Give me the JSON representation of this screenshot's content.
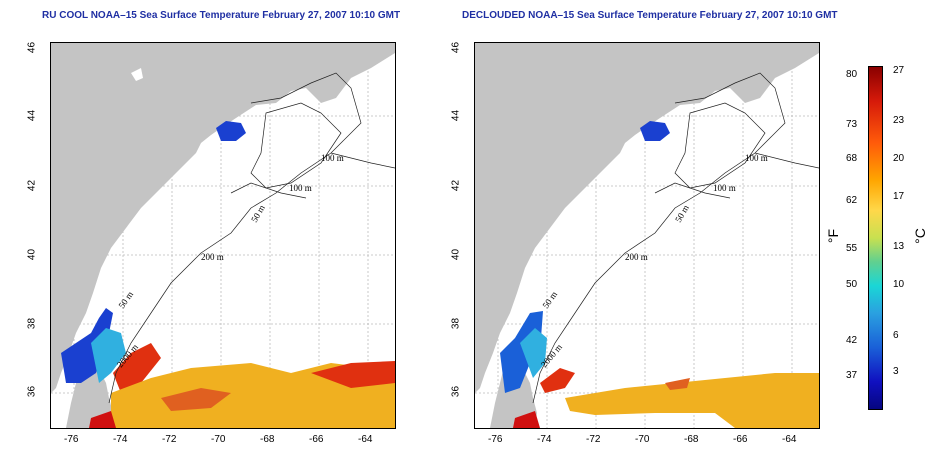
{
  "titles": {
    "left": "RU COOL NOAA–15 Sea Surface Temperature February 27, 2007 10:10 GMT",
    "right": "DECLOUDED NOAA–15 Sea Surface Temperature February 27, 2007 10:10 GMT"
  },
  "axes": {
    "x_ticks": [
      "-76",
      "-74",
      "-72",
      "-70",
      "-68",
      "-66",
      "-64"
    ],
    "y_ticks": [
      "46",
      "44",
      "42",
      "40",
      "38",
      "36"
    ]
  },
  "contours": {
    "c100a": "100 m",
    "c100b": "100 m",
    "c50": "50 m",
    "c200": "200 m",
    "c50b": "50 m",
    "c2000": "2000 m"
  },
  "colorbar": {
    "fahrenheit": [
      "80",
      "73",
      "68",
      "62",
      "55",
      "50",
      "42",
      "37"
    ],
    "celsius": [
      "27",
      "23",
      "20",
      "17",
      "13",
      "10",
      "6",
      "3"
    ],
    "unit_f": "°F",
    "unit_c": "°C"
  },
  "colors": {
    "land": "#c4c4c4",
    "ocean_nodata": "#ffffff",
    "cold": "#1a40d0",
    "warm": "#f0b020",
    "hot": "#e03010"
  }
}
